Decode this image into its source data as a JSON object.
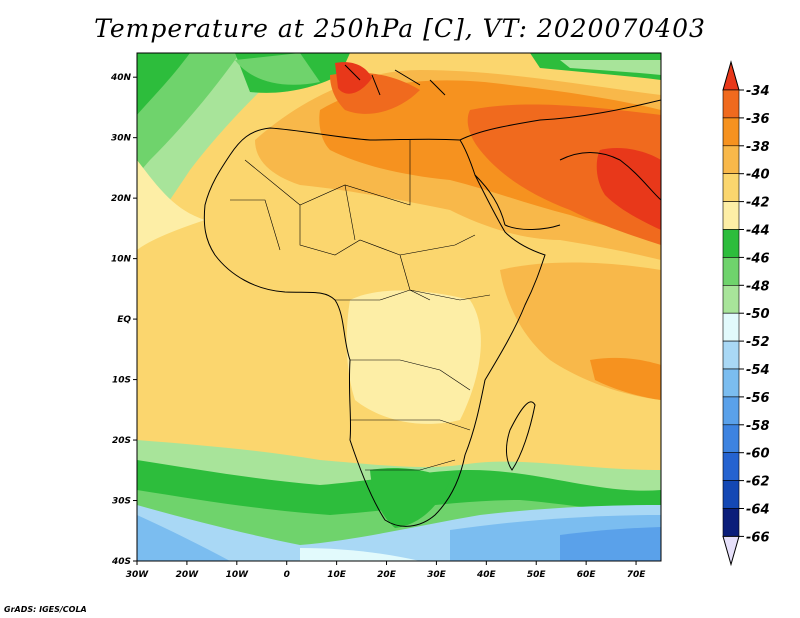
{
  "title": "Temperature at 250hPa [C], VT: 2020070403",
  "credit": "GrADS: IGES/COLA",
  "map": {
    "lon_range": [
      -30,
      75
    ],
    "lat_range": [
      -40,
      44
    ],
    "lon_ticks": [
      "30W",
      "20W",
      "10W",
      "0",
      "10E",
      "20E",
      "30E",
      "40E",
      "50E",
      "60E",
      "70E"
    ],
    "lat_ticks": [
      "40S",
      "30S",
      "20S",
      "10S",
      "EQ",
      "10N",
      "20N",
      "30N",
      "40N"
    ]
  },
  "colorbar": {
    "levels": [
      "-34",
      "-36",
      "-38",
      "-40",
      "-42",
      "-44",
      "-46",
      "-48",
      "-50",
      "-52",
      "-54",
      "-56",
      "-58",
      "-60",
      "-62",
      "-64",
      "-66"
    ],
    "colors": [
      "#e8381a",
      "#f06a1e",
      "#f6921f",
      "#f8b84a",
      "#fbd66e",
      "#fdeea6",
      "#2dbd3c",
      "#6fd36c",
      "#a8e49a",
      "#e2fafc",
      "#a9d8f5",
      "#7bbdf0",
      "#5aa1ea",
      "#3d83e0",
      "#2563d0",
      "#1448b4",
      "#0b1e7a",
      "#e6e0fa"
    ]
  }
}
